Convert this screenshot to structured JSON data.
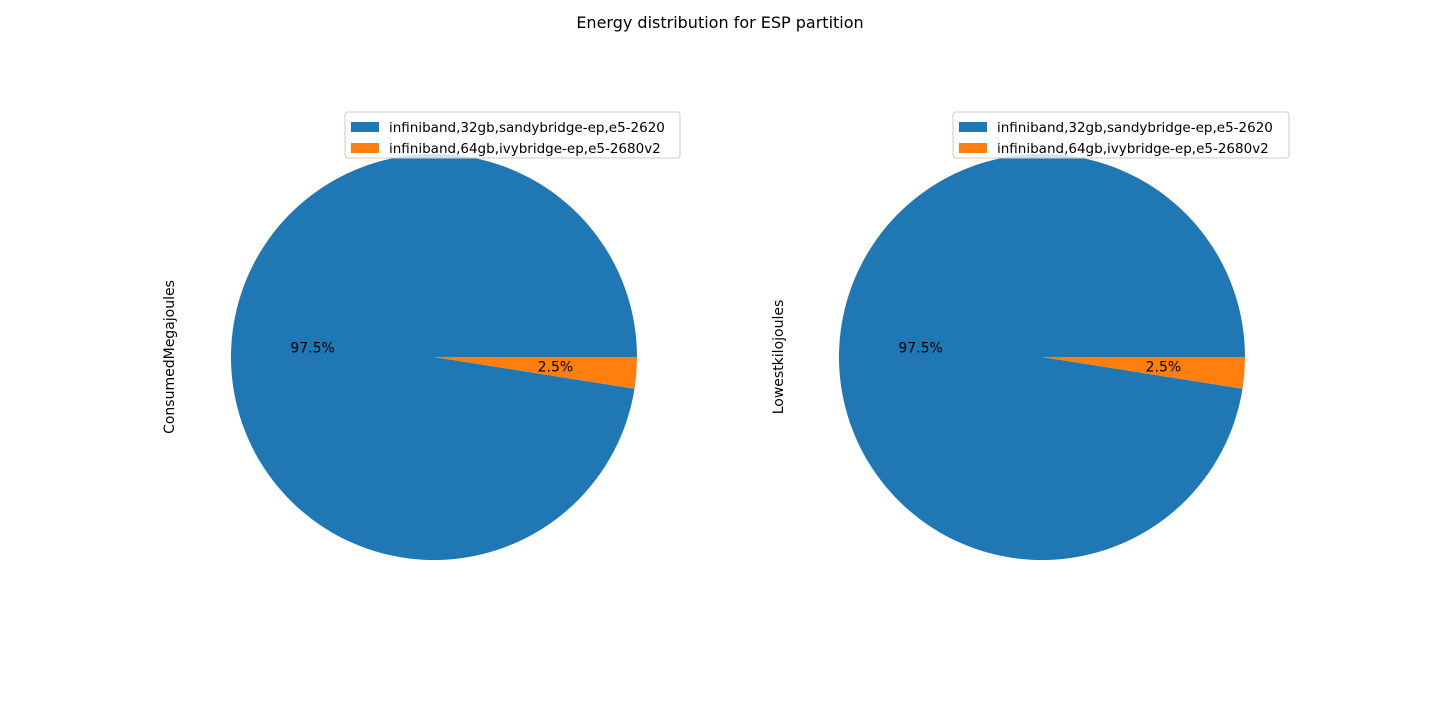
{
  "figure": {
    "title": "Energy distribution for ESP partition"
  },
  "chart_data": [
    {
      "type": "pie",
      "title": "",
      "ylabel": "ConsumedMegajoules",
      "labels": [
        "infiniband,32gb,sandybridge-ep,e5-2620",
        "infiniband,64gb,ivybridge-ep,e5-2680v2"
      ],
      "values": [
        97.5,
        2.5
      ],
      "pct_labels": [
        "97.5%",
        "2.5%"
      ],
      "colors": [
        "#1f77b4",
        "#ff7f0e"
      ],
      "legend_position": "upper-right"
    },
    {
      "type": "pie",
      "title": "",
      "ylabel": "Lowestkilojoules",
      "labels": [
        "infiniband,32gb,sandybridge-ep,e5-2620",
        "infiniband,64gb,ivybridge-ep,e5-2680v2"
      ],
      "values": [
        97.5,
        2.5
      ],
      "pct_labels": [
        "97.5%",
        "2.5%"
      ],
      "colors": [
        "#1f77b4",
        "#ff7f0e"
      ],
      "legend_position": "upper-right"
    }
  ]
}
